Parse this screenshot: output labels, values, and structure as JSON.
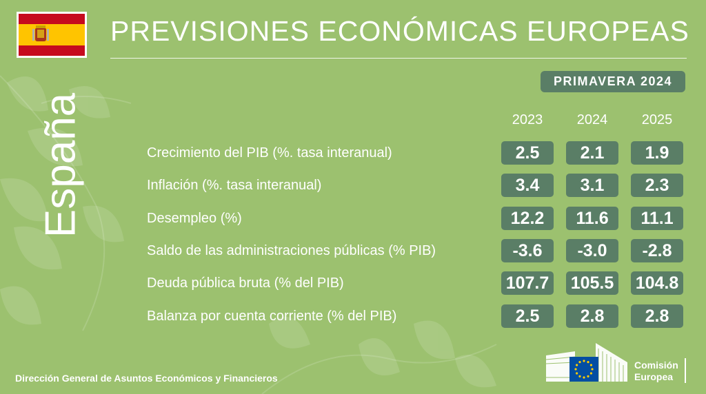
{
  "title": "PREVISIONES ECONÓMICAS EUROPEAS",
  "country": "España",
  "season": "PRIMAVERA 2024",
  "years": [
    "2023",
    "2024",
    "2025"
  ],
  "indicators": [
    {
      "label": "Crecimiento del PIB (%. tasa interanual)",
      "values": [
        "2.5",
        "2.1",
        "1.9"
      ]
    },
    {
      "label": "Inflación (%. tasa interanual)",
      "values": [
        "3.4",
        "3.1",
        "2.3"
      ]
    },
    {
      "label": "Desempleo (%)",
      "values": [
        "12.2",
        "11.6",
        "11.1"
      ]
    },
    {
      "label": "Saldo de las administraciones públicas (% PIB)",
      "values": [
        "-3.6",
        "-3.0",
        "-2.8"
      ]
    },
    {
      "label": "Deuda pública bruta (% del PIB)",
      "values": [
        "107.7",
        "105.5",
        "104.8"
      ]
    },
    {
      "label": "Balanza por cuenta corriente (% del PIB)",
      "values": [
        "2.5",
        "2.8",
        "2.8"
      ]
    }
  ],
  "footer": "Dirección General de Asuntos Económicos y Financieros",
  "logo_text": [
    "Comisión",
    "Europea"
  ],
  "colors": {
    "background": "#9cc16f",
    "box": "#5a7e66",
    "flag_red": "#c60b1e",
    "flag_yellow": "#ffc400",
    "eu_blue": "#034ea2"
  }
}
